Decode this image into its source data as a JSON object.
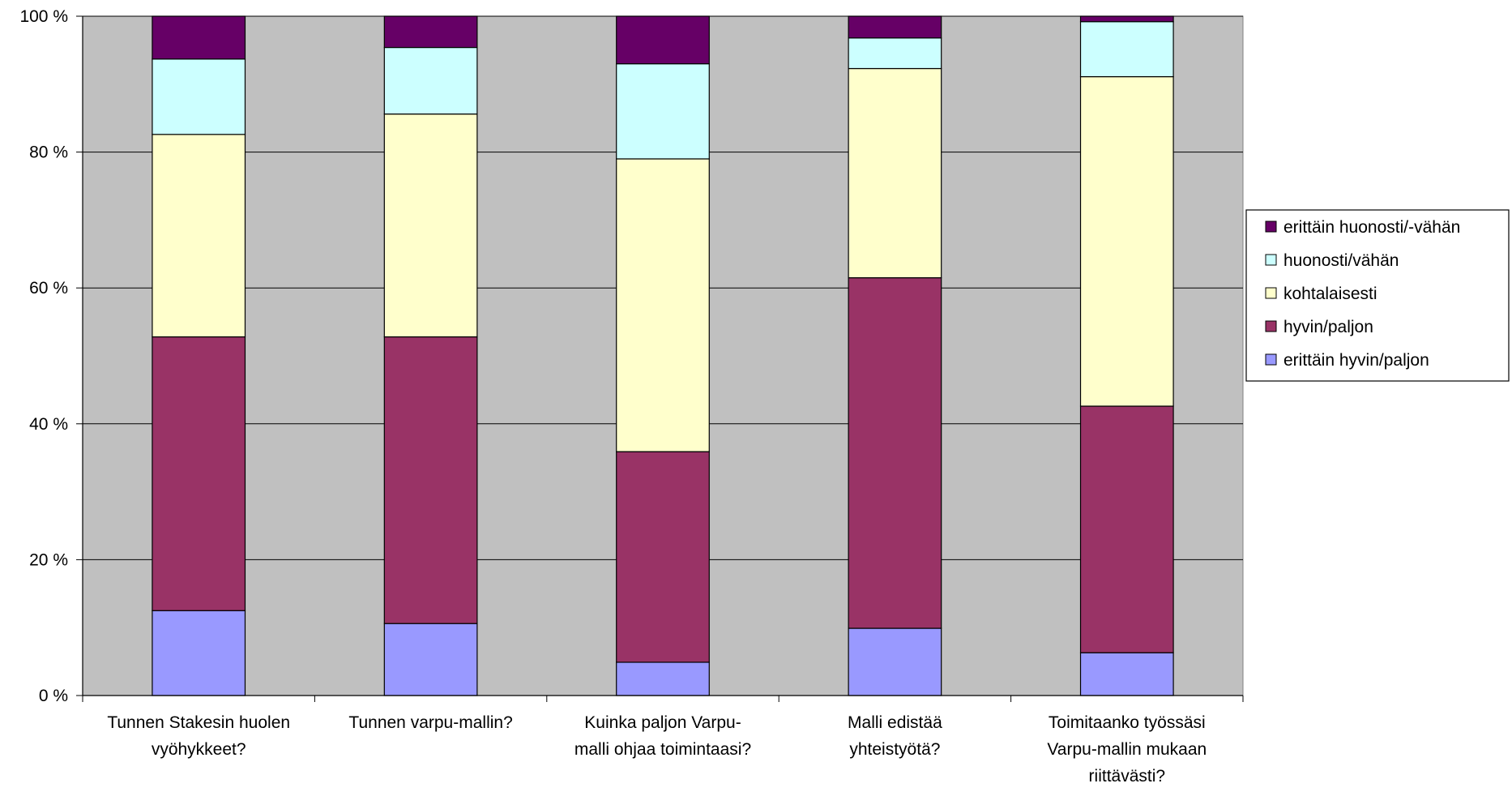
{
  "chart_data": {
    "type": "bar",
    "stacked": "percent",
    "categories": [
      [
        "Tunnen Stakesin huolen",
        "vyöhykkeet?"
      ],
      [
        "Tunnen varpu-mallin?"
      ],
      [
        "Kuinka paljon Varpu-",
        "malli ohjaa toimintaasi?"
      ],
      [
        "Malli edistää",
        "yhteistyötä?"
      ],
      [
        "Toimitaanko työssäsi",
        "Varpu-mallin mukaan",
        "riittävästi?"
      ]
    ],
    "series": [
      {
        "name": "erittäin hyvin/paljon",
        "color": "#9999ff",
        "values": [
          12.5,
          10.6,
          4.9,
          9.9,
          6.3
        ]
      },
      {
        "name": "hyvin/paljon",
        "color": "#993366",
        "values": [
          40.3,
          42.2,
          31.0,
          51.6,
          36.3
        ]
      },
      {
        "name": "kohtalaisesti",
        "color": "#ffffcc",
        "values": [
          29.8,
          32.8,
          43.1,
          30.8,
          48.5
        ]
      },
      {
        "name": "huonosti/vähän",
        "color": "#ccffff",
        "values": [
          11.1,
          9.8,
          14.0,
          4.5,
          8.1
        ]
      },
      {
        "name": "erittäin huonosti/-vähän",
        "color": "#660066",
        "values": [
          6.3,
          4.6,
          7.0,
          3.2,
          0.8
        ]
      }
    ],
    "yticks": [
      "0 %",
      "20 %",
      "40 %",
      "60 %",
      "80 %",
      "100 %"
    ],
    "ylim": [
      0,
      100
    ],
    "grid": true,
    "plot_background": "#c0c0c0",
    "legend_position": "right",
    "legend_order": "reversed"
  }
}
